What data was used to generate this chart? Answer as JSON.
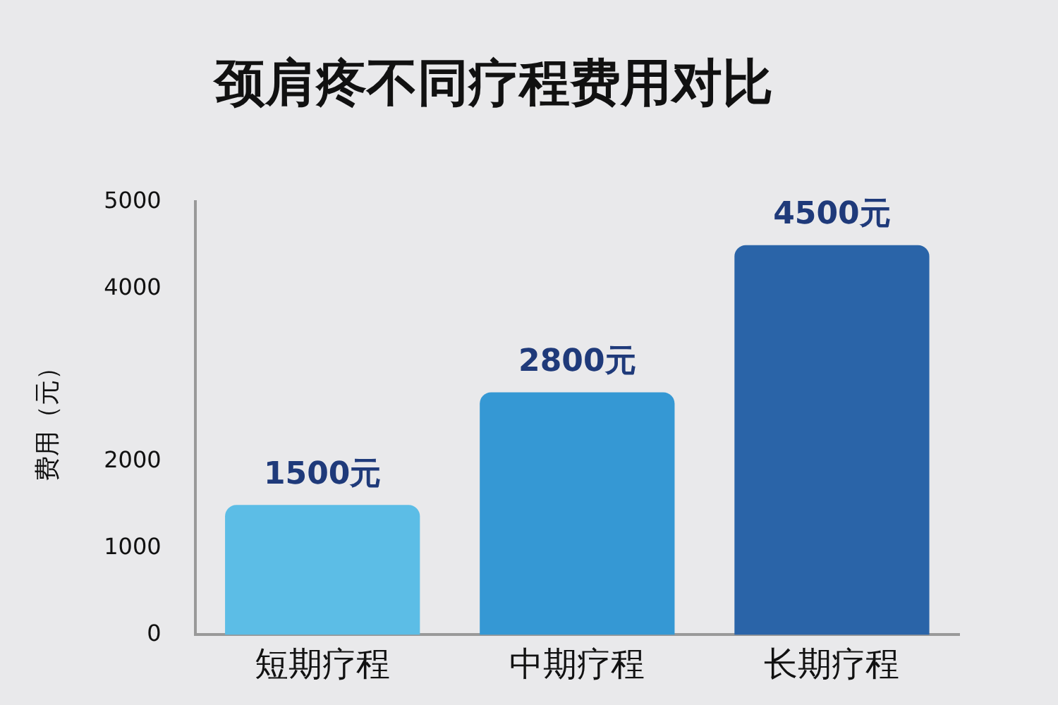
{
  "chart_data": {
    "type": "bar",
    "title": "颈肩疼不同疗程费用对比",
    "ylabel": "费用（元）",
    "categories": [
      "短期疗程",
      "中期疗程",
      "长期疗程"
    ],
    "values": [
      1500,
      2800,
      4500
    ],
    "colors": [
      "#5cbde6",
      "#3598d4",
      "#2a64a8"
    ],
    "value_labels": [
      "1500元",
      "2800元",
      "4500元"
    ],
    "ylim": [
      0,
      5000
    ],
    "yticks": [
      0,
      1000,
      2000,
      4000,
      5000
    ]
  }
}
